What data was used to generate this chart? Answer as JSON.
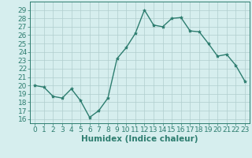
{
  "x": [
    0,
    1,
    2,
    3,
    4,
    5,
    6,
    7,
    8,
    9,
    10,
    11,
    12,
    13,
    14,
    15,
    16,
    17,
    18,
    19,
    20,
    21,
    22,
    23
  ],
  "y": [
    20,
    19.8,
    18.7,
    18.5,
    19.6,
    18.2,
    16.2,
    17.0,
    18.5,
    23.2,
    24.5,
    26.2,
    29.0,
    27.2,
    27.0,
    28.0,
    28.1,
    26.5,
    26.4,
    25.0,
    23.5,
    23.7,
    22.4,
    20.5
  ],
  "line_color": "#2d7d6f",
  "marker": "*",
  "marker_color": "#2d7d6f",
  "bg_color": "#d6eeee",
  "grid_color": "#b0cece",
  "grid_color_minor": "#c8e4e4",
  "xlabel": "Humidex (Indice chaleur)",
  "ylabel_ticks": [
    16,
    17,
    18,
    19,
    20,
    21,
    22,
    23,
    24,
    25,
    26,
    27,
    28,
    29
  ],
  "ylim": [
    15.5,
    30.0
  ],
  "xlim": [
    -0.5,
    23.5
  ],
  "tick_fontsize": 6.5,
  "xlabel_fontsize": 7.5,
  "label_color": "#2d7d6f",
  "spine_color": "#2d7d6f",
  "linewidth": 1.0,
  "markersize": 3.0
}
